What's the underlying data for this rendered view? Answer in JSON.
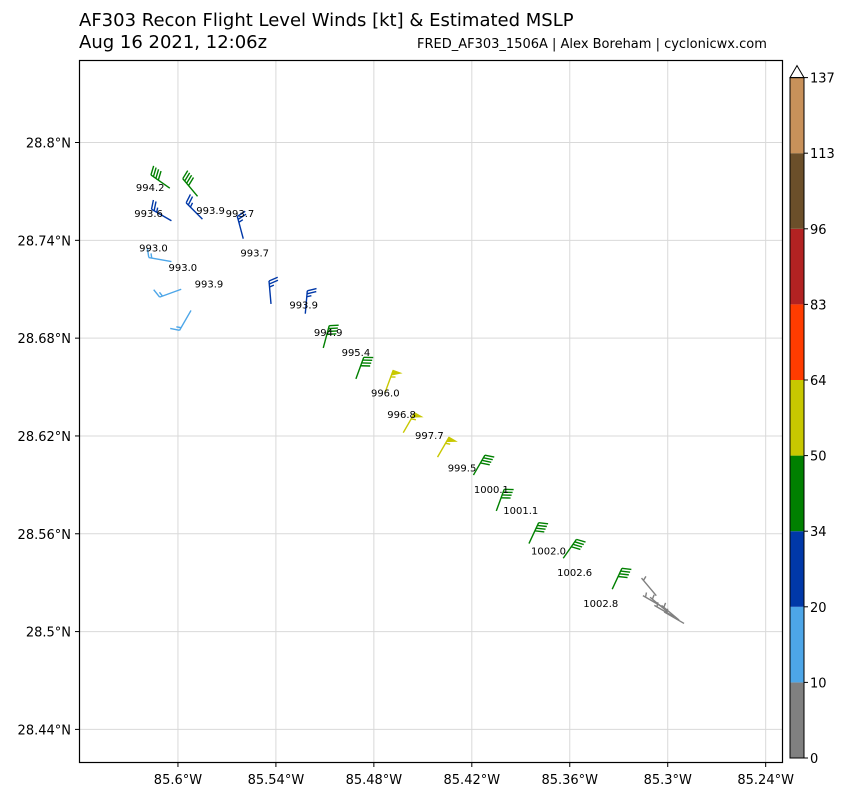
{
  "header": {
    "title": "AF303 Recon Flight Level Winds [kt] & Estimated MSLP",
    "subtitle": "Aug 16 2021, 12:06z",
    "credit": "FRED_AF303_1506A | Alex Boreham | cyclonicwx.com"
  },
  "chart_data": {
    "type": "scatter",
    "title": "AF303 Recon Flight Level Winds [kt] & Estimated MSLP",
    "xlim": [
      -85.66,
      -85.23
    ],
    "ylim": [
      28.42,
      28.85
    ],
    "grid": true,
    "x_ticks": [
      -85.6,
      -85.54,
      -85.48,
      -85.42,
      -85.36,
      -85.3,
      -85.24
    ],
    "x_tick_labels": [
      "85.6°W",
      "85.54°W",
      "85.48°W",
      "85.42°W",
      "85.36°W",
      "85.3°W",
      "85.24°W"
    ],
    "y_ticks": [
      28.44,
      28.5,
      28.56,
      28.62,
      28.68,
      28.74,
      28.8
    ],
    "y_tick_labels": [
      "28.44°N",
      "28.5°N",
      "28.56°N",
      "28.62°N",
      "28.68°N",
      "28.74°N",
      "28.8°N"
    ],
    "colorbar": {
      "bounds": [
        0,
        10,
        20,
        34,
        50,
        64,
        83,
        96,
        113,
        137
      ],
      "labels": [
        "0",
        "10",
        "20",
        "34",
        "50",
        "64",
        "83",
        "96",
        "113",
        "137"
      ],
      "colors": [
        "#808080",
        "#4da6e8",
        "#0038a8",
        "#008000",
        "#c8c800",
        "#ff3c00",
        "#b22222",
        "#6b4f2a",
        "#c8915a"
      ]
    },
    "barbs": [
      {
        "lon": -85.605,
        "lat": 28.772,
        "dir": 305,
        "kt": 40
      },
      {
        "lon": -85.588,
        "lat": 28.767,
        "dir": 320,
        "kt": 40
      },
      {
        "lon": -85.604,
        "lat": 28.752,
        "dir": 300,
        "kt": 25
      },
      {
        "lon": -85.585,
        "lat": 28.753,
        "dir": 315,
        "kt": 25
      },
      {
        "lon": -85.56,
        "lat": 28.741,
        "dir": 345,
        "kt": 25
      },
      {
        "lon": -85.604,
        "lat": 28.727,
        "dir": 280,
        "kt": 15
      },
      {
        "lon": -85.598,
        "lat": 28.71,
        "dir": 250,
        "kt": 15
      },
      {
        "lon": -85.592,
        "lat": 28.697,
        "dir": 210,
        "kt": 15
      },
      {
        "lon": -85.543,
        "lat": 28.701,
        "dir": 355,
        "kt": 25
      },
      {
        "lon": -85.522,
        "lat": 28.695,
        "dir": 5,
        "kt": 25
      },
      {
        "lon": -85.511,
        "lat": 28.674,
        "dir": 15,
        "kt": 40
      },
      {
        "lon": -85.491,
        "lat": 28.655,
        "dir": 20,
        "kt": 40
      },
      {
        "lon": -85.473,
        "lat": 28.647,
        "dir": 20,
        "kt": 55
      },
      {
        "lon": -85.462,
        "lat": 28.622,
        "dir": 30,
        "kt": 55
      },
      {
        "lon": -85.441,
        "lat": 28.607,
        "dir": 30,
        "kt": 55
      },
      {
        "lon": -85.419,
        "lat": 28.596,
        "dir": 30,
        "kt": 40
      },
      {
        "lon": -85.405,
        "lat": 28.574,
        "dir": 20,
        "kt": 40
      },
      {
        "lon": -85.385,
        "lat": 28.554,
        "dir": 25,
        "kt": 40
      },
      {
        "lon": -85.364,
        "lat": 28.545,
        "dir": 35,
        "kt": 40
      },
      {
        "lon": -85.334,
        "lat": 28.526,
        "dir": 25,
        "kt": 40
      },
      {
        "lon": -85.307,
        "lat": 28.522,
        "dir": 320,
        "kt": 5
      },
      {
        "lon": -85.303,
        "lat": 28.515,
        "dir": 300,
        "kt": 5
      },
      {
        "lon": -85.3,
        "lat": 28.512,
        "dir": 310,
        "kt": 5
      },
      {
        "lon": -85.296,
        "lat": 28.509,
        "dir": 300,
        "kt": 5
      },
      {
        "lon": -85.293,
        "lat": 28.507,
        "dir": 310,
        "kt": 5
      },
      {
        "lon": -85.29,
        "lat": 28.505,
        "dir": 300,
        "kt": 5
      }
    ],
    "mslp_labels": [
      {
        "lon": -85.617,
        "lat": 28.772,
        "text": "994.2"
      },
      {
        "lon": -85.618,
        "lat": 28.756,
        "text": "993.6"
      },
      {
        "lon": -85.58,
        "lat": 28.758,
        "text": "993.9"
      },
      {
        "lon": -85.562,
        "lat": 28.756,
        "text": "993.7"
      },
      {
        "lon": -85.615,
        "lat": 28.735,
        "text": "993.0"
      },
      {
        "lon": -85.553,
        "lat": 28.732,
        "text": "993.7"
      },
      {
        "lon": -85.597,
        "lat": 28.723,
        "text": "993.0"
      },
      {
        "lon": -85.581,
        "lat": 28.713,
        "text": "993.9"
      },
      {
        "lon": -85.523,
        "lat": 28.7,
        "text": "993.9"
      },
      {
        "lon": -85.508,
        "lat": 28.683,
        "text": "994.9"
      },
      {
        "lon": -85.491,
        "lat": 28.671,
        "text": "995.4"
      },
      {
        "lon": -85.473,
        "lat": 28.646,
        "text": "996.0"
      },
      {
        "lon": -85.463,
        "lat": 28.633,
        "text": "996.8"
      },
      {
        "lon": -85.446,
        "lat": 28.62,
        "text": "997.7"
      },
      {
        "lon": -85.426,
        "lat": 28.6,
        "text": "999.5"
      },
      {
        "lon": -85.408,
        "lat": 28.587,
        "text": "1000.1"
      },
      {
        "lon": -85.39,
        "lat": 28.574,
        "text": "1001.1"
      },
      {
        "lon": -85.373,
        "lat": 28.549,
        "text": "1002.0"
      },
      {
        "lon": -85.357,
        "lat": 28.536,
        "text": "1002.6"
      },
      {
        "lon": -85.341,
        "lat": 28.517,
        "text": "1002.8"
      }
    ]
  }
}
